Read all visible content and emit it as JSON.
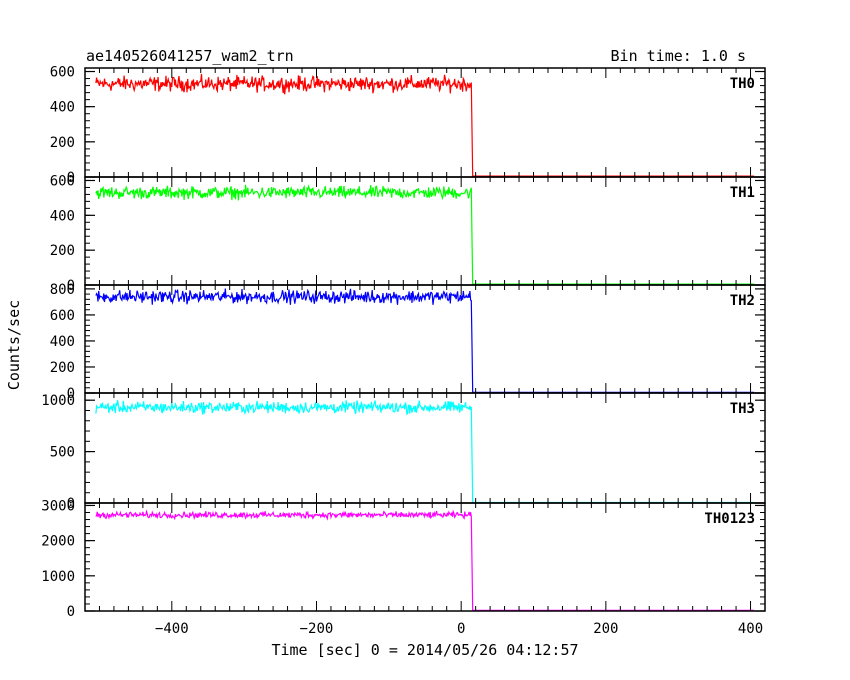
{
  "header": {
    "title": "ae140526041257_wam2_trn",
    "bin_time": "Bin time: 1.0 s"
  },
  "axes": {
    "ylabel": "Counts/sec",
    "xlabel": "Time [sec] 0 = 2014/05/26 04:12:57"
  },
  "colors": {
    "TH0": "#ff0000",
    "TH1": "#00ff00",
    "TH2": "#0000ff",
    "TH3": "#00ffff",
    "TH0123": "#ff00ff"
  },
  "chart_data": {
    "type": "line",
    "xlim": [
      -520,
      420
    ],
    "x_ticks": [
      -400,
      -200,
      0,
      200,
      400
    ],
    "x_tick_labels": [
      "−400",
      "−200",
      "0",
      "200",
      "400"
    ],
    "data_x_range": [
      -505,
      405
    ],
    "step_time": 15,
    "grid": false,
    "series": [
      {
        "name": "TH0",
        "ylim": [
          0,
          620
        ],
        "y_ticks": [
          0,
          200,
          400,
          600
        ],
        "y_tick_labels": [
          "0",
          "200",
          "400",
          "600"
        ],
        "pre_level": 530,
        "noise": 30,
        "post_level": 5
      },
      {
        "name": "TH1",
        "ylim": [
          0,
          620
        ],
        "y_ticks": [
          0,
          200,
          400,
          600
        ],
        "y_tick_labels": [
          "0",
          "200",
          "400",
          "600"
        ],
        "pre_level": 530,
        "noise": 25,
        "post_level": 5
      },
      {
        "name": "TH2",
        "ylim": [
          0,
          830
        ],
        "y_ticks": [
          0,
          200,
          400,
          600,
          800
        ],
        "y_tick_labels": [
          "0",
          "200",
          "400",
          "600",
          "800"
        ],
        "pre_level": 740,
        "noise": 35,
        "post_level": 5
      },
      {
        "name": "TH3",
        "ylim": [
          0,
          1070
        ],
        "y_ticks": [
          0,
          500,
          1000
        ],
        "y_tick_labels": [
          "0",
          "500",
          "1000"
        ],
        "pre_level": 930,
        "noise": 40,
        "post_level": 5
      },
      {
        "name": "TH0123",
        "ylim": [
          0,
          3070
        ],
        "y_ticks": [
          0,
          1000,
          2000,
          3000
        ],
        "y_tick_labels": [
          "0",
          "1000",
          "2000",
          "3000"
        ],
        "pre_level": 2730,
        "noise": 60,
        "post_level": 20
      }
    ]
  }
}
